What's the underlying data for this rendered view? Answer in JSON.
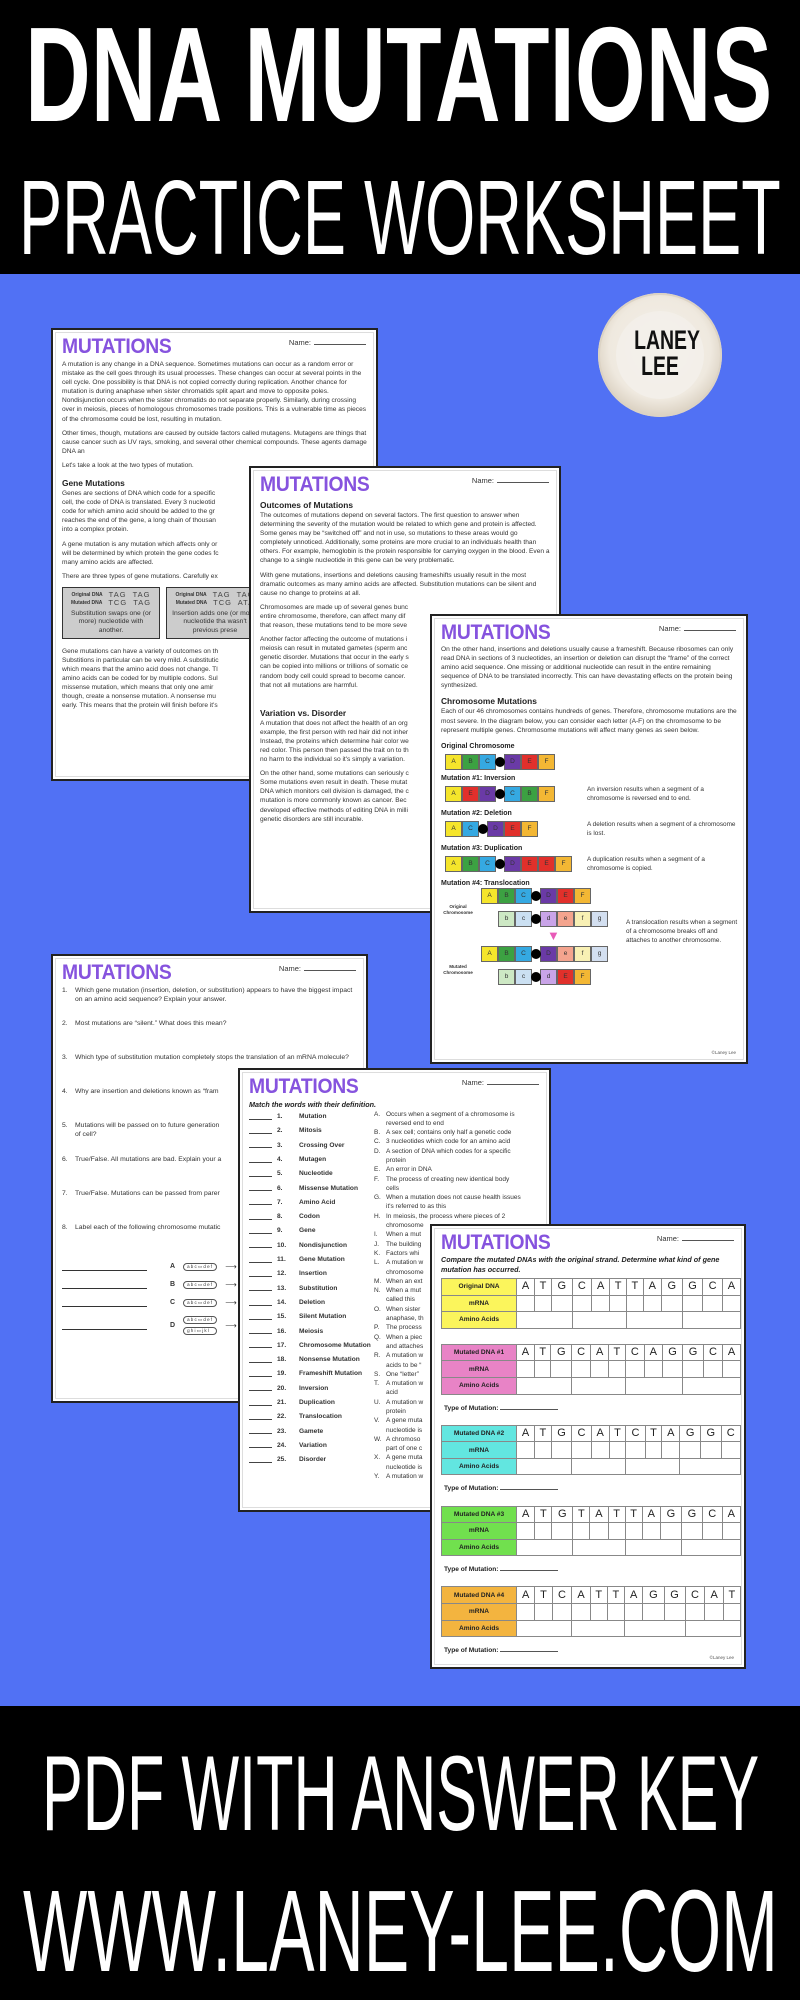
{
  "banner": {
    "line1": "DNA MUTATIONS",
    "line2": "PRACTICE WORKSHEET",
    "line3": "PDF WITH ANSWER KEY",
    "line4": "WWW.LANEY-LEE.COM",
    "background_top": "#000000",
    "background_middle": "#5171f4"
  },
  "logo": {
    "text": "LANEY LEE"
  },
  "common": {
    "title": "MUTATIONS",
    "name_label": "Name:",
    "copyright": "©Laney Lee",
    "title_color": "#8653de"
  },
  "page1": {
    "p1": "A mutation is any change in a DNA sequence. Sometimes mutations can occur as a random error or mistake as the cell goes through its usual processes. These changes can occur at several points in the cell cycle. One possibility is that DNA is not copied correctly during replication. Another chance for mutation is during anaphase when sister chromatids split apart and move to opposite poles. Nondisjunction occurs when the sister chromatids do not separate properly. Similarly, during crossing over in meiosis, pieces of homologous chromosomes trade positions. This is a vulnerable time as pieces of the chromosome could be lost, resulting in mutation.",
    "p2": "Other times, though, mutations are caused by outside factors called mutagens. Mutagens are things that cause cancer such as UV rays, smoking, and several other chemical compounds. These agents damage DNA an",
    "p3": "Let's take a look at the two types of mutation.",
    "h1": "Gene Mutations",
    "p4": "Genes are sections of DNA which code for a specific\ncell, the code of DNA is translated. Every 3 nucleotid\ncode for which amino acid should be added to the gr\nreaches the end of the gene, a long chain of thousan\ninto a complex protein.",
    "p5": "A gene mutation is any mutation which affects only or\nwill be determined by which protein the gene codes fc\nmany amino acids are affected.",
    "p6": "There are three types of gene mutations. Carefully ex",
    "boxes": [
      {
        "orig_label": "Original DNA",
        "orig_seq": "TAG  TAG",
        "mut_label": "Mutated DNA",
        "mut_seq": "TCG  TAG",
        "caption": "Substitution swaps one (or more) nucleotide with another."
      },
      {
        "orig_label": "Original DNA",
        "orig_seq": "TAG  TAG",
        "mut_label": "Mutated DNA",
        "mut_seq": "TCG  ATA",
        "caption": "Insertion adds one (or more) nucleotide tha wasn't previous prese"
      }
    ],
    "p7": "Gene mutations can have a variety of outcomes on th\nSubstitions in particular can be very mild. A substitutic\nwhich means that the amino acid does not change. Tl\namino acids can be coded for by multiple codons. Sul\nmissense mutation, which means that only one amir\nthough, create a nonsense mutation. A nonsense mu\nearly. This means that the protein will finish before it's"
  },
  "page2": {
    "h1": "Outcomes of Mutations",
    "p1": "The outcomes of mutations depend on several factors. The first question to answer when determining the severity of the mutation would be related to which gene and protein is affected. Some genes may be “switched off” and not in use, so mutations to these areas would go completely unnoticed. Additionally, some proteins are more crucial to an individuals health than others. For example, hemoglobin is the protein responsible for carrying oxygen in the blood. Even a change to a single nucleotide in this gene can be very problematic.",
    "p2": "With gene mutations, insertions and deletions causing frameshifts usually result in the most dramatic outcomes as many amino acids are affected. Substitution mutations can be silent and cause no change to proteins at all.",
    "p3": "Chromosomes are made up of several genes bunc\nentire chromosome, therefore, can affect many dif\nthat reason, these mutations tend to be more seve",
    "p4": "Another factor affecting the outcome of mutations i\nmeiosis can result in mutated gametes (sperm anc\ngenetic disorder. Mutations that occur in the early s\ncan be copied into millions or trillions of somatic ce\nrandom body cell could spread to become cancer.\nthat not all mutations are harmful.",
    "h2": "Variation vs. Disorder",
    "p5": "A mutation that does not affect the health of an org\nexample, the first person with red hair did not inher\nInstead, the proteins which determine hair color we\nred color. This person then passed the trait on to th\nno harm to the individual so it's simply a variation.",
    "p6": "On the other hand, some mutations can seriously c\nSome mutations even result in death. These mutat\nDNA which monitors cell division is damaged, the c\nmutation is more commonly known as cancer. Bec\ndeveloped effective methods of editing DNA in milli\ngenetic disorders are still incurable."
  },
  "page3": {
    "p1": "On the other hand, insertions and deletions usually cause a frameshift. Because ribosomes can only read DNA in sections of 3 nucleotides, an insertion or deletion can disrupt the “frame” of the correct amino acid sequence. One missing or additional nucleotide can result in the entire remaining sequence of DNA to be translated incorrectly. This can have devastating effects on the protein being synthesized.",
    "h1": "Chromosome Mutations",
    "p2": "Each of our 46 chromosomes contains hundreds of genes. Therefore, chromosome mutations are the most severe. In the diagram below, you can consider each letter (A-F) on the chromosome to be represent multiple genes. Chromosome mutations will affect many genes as seen below.",
    "original": {
      "label": "Original Chromosome",
      "segments": [
        "A",
        "B",
        "C",
        "•",
        "D",
        "E",
        "F"
      ]
    },
    "mutations": [
      {
        "label": "Mutation #1: Inversion",
        "segments": [
          "A",
          "E",
          "D",
          "•",
          "C",
          "B",
          "F"
        ],
        "desc": "An inversion results when a segment of a chromosome is reversed end to end."
      },
      {
        "label": "Mutation #2: Deletion",
        "segments": [
          "A",
          "C",
          "•",
          "D",
          "E",
          "F"
        ],
        "desc": "A deletion results when a segment of a chromosome is lost."
      },
      {
        "label": "Mutation #3: Duplication",
        "segments": [
          "A",
          "B",
          "C",
          "•",
          "D",
          "E",
          "E",
          "F"
        ],
        "desc": "A duplication results when a segment of a chromosome is copied."
      }
    ],
    "translocation": {
      "label": "Mutation #4: Translocation",
      "original_label": "Original Chromosome",
      "mutated_label": "Mutated Chromosome",
      "original": [
        [
          "A",
          "B",
          "C",
          "•",
          "D",
          "E",
          "F"
        ],
        [
          "b",
          "c",
          "•",
          "d",
          "e",
          "f",
          "g"
        ]
      ],
      "mutated": [
        [
          "A",
          "B",
          "C",
          "•",
          "D",
          "e",
          "f",
          "g"
        ],
        [
          "b",
          "c",
          "•",
          "d",
          "E",
          "F"
        ]
      ],
      "desc": "A translocation results when a segment of a chromosome breaks off and attaches to another chromosome.",
      "arrow_color": "#e85bb8"
    },
    "segment_colors": {
      "A": "#f5e52b",
      "B": "#3ca142",
      "C": "#35a9e2",
      "D": "#6a3aa6",
      "E": "#e1302b",
      "F": "#f3b734",
      "b": "#cde8c4",
      "c": "#cbe0f2",
      "d": "#c9a4e8",
      "e": "#f4a48e",
      "f": "#f8f0b4",
      "g": "#d3dff0"
    }
  },
  "page4": {
    "questions": [
      "Which gene mutation (insertion, deletion, or substitution) appears to have the biggest impact on an amino acid sequence? Explain your answer.",
      "Most mutations are “silent.” What does this mean?",
      "Which type of substitution mutation completely stops the translation of an mRNA molecule?",
      "Why are insertion and deletions known as “fram",
      "Mutations will be passed on to future generation\nof cell?",
      "True/False. All mutations are bad. Explain your a",
      "True/False. Mutations can be passed from parer",
      "Label each of the following chromosome mutatic"
    ],
    "labels": [
      {
        "letter": "A",
        "chromosomes": [
          "abc▭def"
        ]
      },
      {
        "letter": "B",
        "chromosomes": [
          "abc▭def"
        ]
      },
      {
        "letter": "C",
        "chromosomes": [
          "abc▭def"
        ]
      },
      {
        "letter": "D",
        "chromosomes": [
          "abc▭def",
          "ghi▭jkl"
        ]
      }
    ]
  },
  "page5": {
    "instructions": "Match the words with their definition.",
    "terms": [
      "Mutation",
      "Mitosis",
      "Crossing Over",
      "Mutagen",
      "Nucleotide",
      "Missense Mutation",
      "Amino Acid",
      "Codon",
      "Gene",
      "Nondisjunction",
      "Gene Mutation",
      "Insertion",
      "Substitution",
      "Deletion",
      "Silent Mutation",
      "Meiosis",
      "Chromosome Mutation",
      "Nonsense Mutation",
      "Frameshift Mutation",
      "Inversion",
      "Duplication",
      "Translocation",
      "Gamete",
      "Variation",
      "Disorder"
    ],
    "definitions": [
      {
        "letter": "A.",
        "text": "Occurs when a segment of a chromosome is\nreversed end to end"
      },
      {
        "letter": "B.",
        "text": "A sex cell; contains only half a genetic code"
      },
      {
        "letter": "C.",
        "text": "3 nucleotides which code for an amino acid"
      },
      {
        "letter": "D.",
        "text": "A section of DNA which codes for a specific\nprotein"
      },
      {
        "letter": "E.",
        "text": "An error in DNA"
      },
      {
        "letter": "F.",
        "text": "The process of creating new identical body\ncells"
      },
      {
        "letter": "G.",
        "text": "When a mutation does not cause health issues\nit's referred to as this"
      },
      {
        "letter": "H.",
        "text": "In meiosis, the process where pieces of 2\nchromosome"
      },
      {
        "letter": "I.",
        "text": "When a mut"
      },
      {
        "letter": "J.",
        "text": "The building"
      },
      {
        "letter": "K.",
        "text": "Factors whi"
      },
      {
        "letter": "L.",
        "text": "A mutation w\nchromosome"
      },
      {
        "letter": "M.",
        "text": "When an ext"
      },
      {
        "letter": "N.",
        "text": "When a mut\ncalled this"
      },
      {
        "letter": "O.",
        "text": "When sister\nanaphase, th"
      },
      {
        "letter": "P.",
        "text": "The process"
      },
      {
        "letter": "Q.",
        "text": "When a piec\nand attaches"
      },
      {
        "letter": "R.",
        "text": "A mutation w\nacids to be “"
      },
      {
        "letter": "S.",
        "text": "One “letter”"
      },
      {
        "letter": "T.",
        "text": "A mutation w\nacid"
      },
      {
        "letter": "U.",
        "text": "A mutation w\nprotein"
      },
      {
        "letter": "V.",
        "text": "A gene muta\nnucleotide is"
      },
      {
        "letter": "W.",
        "text": "A chromoso\npart of one c"
      },
      {
        "letter": "X.",
        "text": "A gene muta\nnucleotide is"
      },
      {
        "letter": "Y.",
        "text": "A mutation w"
      }
    ]
  },
  "page6": {
    "instructions": "Compare the mutated DNAs with the original strand. Determine what kind of gene mutation  has occurred.",
    "row_labels": [
      "mRNA",
      "Amino Acids"
    ],
    "type_label": "Type of Mutation:",
    "strands": [
      {
        "label": "Original DNA",
        "sequence": [
          "A",
          "T",
          "G",
          "C",
          "A",
          "T",
          "T",
          "A",
          "G",
          "G",
          "C",
          "A"
        ],
        "color": "#fbf55c"
      },
      {
        "label": "Mutated  DNA #1",
        "sequence": [
          "A",
          "T",
          "G",
          "C",
          "A",
          "T",
          "C",
          "A",
          "G",
          "G",
          "C",
          "A"
        ],
        "color": "#e883c6"
      },
      {
        "label": "Mutated  DNA #2",
        "sequence": [
          "A",
          "T",
          "G",
          "C",
          "A",
          "T",
          "C",
          "T",
          "A",
          "G",
          "G",
          "C"
        ],
        "color": "#62e6e0"
      },
      {
        "label": "Mutated  DNA #3",
        "sequence": [
          "A",
          "T",
          "G",
          "T",
          "A",
          "T",
          "T",
          "A",
          "G",
          "G",
          "C",
          "A"
        ],
        "color": "#71e04e"
      },
      {
        "label": "Mutated  DNA #4",
        "sequence": [
          "A",
          "T",
          "C",
          "A",
          "T",
          "T",
          "A",
          "G",
          "G",
          "C",
          "A",
          "T"
        ],
        "color": "#f3b43f"
      }
    ]
  }
}
